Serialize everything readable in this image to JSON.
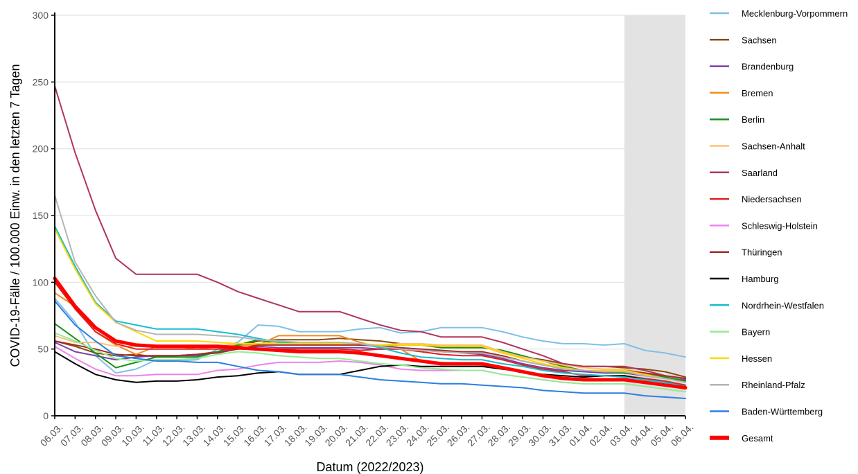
{
  "chart_data": {
    "type": "line",
    "xlabel": "Datum (2022/2023)",
    "ylabel": "COVID-19-Fälle / 100.000 Einw. in den letzten 7 Tagen",
    "ylim": [
      0,
      300
    ],
    "yticks": [
      0,
      50,
      100,
      150,
      200,
      250,
      300
    ],
    "categories": [
      "06.03.",
      "07.03.",
      "08.03.",
      "09.03.",
      "10.03.",
      "11.03.",
      "12.03.",
      "13.03.",
      "14.03.",
      "15.03.",
      "16.03.",
      "17.03.",
      "18.03.",
      "19.03.",
      "20.03.",
      "21.03.",
      "22.03.",
      "23.03.",
      "24.03.",
      "25.03.",
      "26.03.",
      "27.03.",
      "28.03.",
      "29.03.",
      "30.03.",
      "31.03.",
      "01.04.",
      "02.04.",
      "03.04.",
      "04.04.",
      "05.04.",
      "06.04."
    ],
    "shaded_region": {
      "from": "03.04.",
      "to": "06.04.",
      "color": "#e3e3e3"
    },
    "grid": "horizontal",
    "legend_position": "right",
    "series": [
      {
        "name": "Mecklenburg-Vorpommern",
        "color": "#7fbfea",
        "width": 2,
        "values": [
          88,
          70,
          45,
          32,
          35,
          42,
          41,
          42,
          50,
          55,
          68,
          67,
          63,
          63,
          63,
          65,
          66,
          62,
          63,
          66,
          66,
          66,
          63,
          59,
          56,
          54,
          54,
          53,
          54,
          49,
          47,
          44
        ]
      },
      {
        "name": "Sachsen",
        "color": "#8c4a10",
        "width": 2,
        "values": [
          56,
          52,
          47,
          45,
          46,
          44,
          45,
          46,
          48,
          52,
          56,
          57,
          57,
          57,
          58,
          57,
          56,
          54,
          54,
          52,
          52,
          52,
          47,
          44,
          42,
          39,
          37,
          37,
          36,
          35,
          33,
          29
        ]
      },
      {
        "name": "Brandenburg",
        "color": "#7b3fa8",
        "width": 2,
        "values": [
          55,
          48,
          45,
          42,
          44,
          45,
          45,
          45,
          48,
          50,
          52,
          51,
          51,
          51,
          51,
          51,
          50,
          50,
          49,
          48,
          47,
          46,
          43,
          39,
          36,
          34,
          33,
          32,
          32,
          30,
          28,
          27
        ]
      },
      {
        "name": "Bremen",
        "color": "#f28a1e",
        "width": 2,
        "values": [
          92,
          82,
          63,
          53,
          46,
          52,
          52,
          50,
          52,
          53,
          53,
          60,
          60,
          60,
          60,
          55,
          51,
          50,
          41,
          40,
          39,
          38,
          36,
          33,
          30,
          28,
          27,
          27,
          27,
          25,
          23,
          20
        ]
      },
      {
        "name": "Berlin",
        "color": "#1a8f1a",
        "width": 2,
        "values": [
          69,
          58,
          47,
          36,
          40,
          44,
          44,
          44,
          48,
          53,
          57,
          54,
          54,
          54,
          54,
          53,
          52,
          53,
          53,
          51,
          51,
          51,
          49,
          45,
          41,
          37,
          34,
          33,
          32,
          31,
          29,
          26
        ]
      },
      {
        "name": "Sachsen-Anhalt",
        "color": "#ffbf78",
        "width": 2,
        "values": [
          60,
          55,
          55,
          52,
          52,
          52,
          52,
          52,
          52,
          54,
          54,
          55,
          54,
          54,
          54,
          54,
          53,
          54,
          54,
          53,
          53,
          53,
          48,
          44,
          41,
          38,
          36,
          35,
          35,
          32,
          30,
          28
        ]
      },
      {
        "name": "Saarland",
        "color": "#b0355f",
        "width": 2,
        "values": [
          247,
          197,
          154,
          118,
          106,
          106,
          106,
          106,
          100,
          93,
          88,
          83,
          78,
          78,
          78,
          73,
          68,
          64,
          63,
          59,
          59,
          59,
          55,
          50,
          45,
          39,
          37,
          37,
          37,
          34,
          30,
          28
        ]
      },
      {
        "name": "Niedersachsen",
        "color": "#e02020",
        "width": 2,
        "values": [
          100,
          80,
          63,
          54,
          50,
          50,
          50,
          50,
          50,
          50,
          50,
          50,
          50,
          50,
          50,
          49,
          50,
          50,
          48,
          46,
          45,
          45,
          42,
          38,
          35,
          33,
          30,
          30,
          30,
          28,
          26,
          23
        ]
      },
      {
        "name": "Schleswig-Holstein",
        "color": "#ee82ee",
        "width": 2,
        "values": [
          52,
          43,
          35,
          30,
          30,
          31,
          31,
          31,
          34,
          35,
          38,
          40,
          40,
          40,
          41,
          40,
          38,
          35,
          34,
          34,
          34,
          34,
          31,
          29,
          27,
          25,
          24,
          24,
          24,
          22,
          20,
          18
        ]
      },
      {
        "name": "Thüringen",
        "color": "#a32b2b",
        "width": 2,
        "values": [
          56,
          53,
          50,
          46,
          45,
          45,
          45,
          46,
          47,
          50,
          53,
          53,
          53,
          53,
          53,
          53,
          52,
          51,
          50,
          49,
          48,
          48,
          45,
          41,
          38,
          36,
          34,
          34,
          34,
          32,
          30,
          28
        ]
      },
      {
        "name": "Hamburg",
        "color": "#000000",
        "width": 2,
        "values": [
          48,
          39,
          31,
          27,
          25,
          26,
          26,
          27,
          29,
          30,
          32,
          33,
          31,
          31,
          31,
          34,
          37,
          38,
          37,
          37,
          37,
          37,
          35,
          33,
          31,
          30,
          29,
          30,
          30,
          27,
          25,
          22
        ]
      },
      {
        "name": "Nordrhein-Westfalen",
        "color": "#17becf",
        "width": 2,
        "values": [
          142,
          112,
          85,
          71,
          68,
          65,
          65,
          65,
          63,
          61,
          58,
          55,
          55,
          55,
          54,
          54,
          51,
          47,
          44,
          43,
          42,
          42,
          39,
          37,
          34,
          32,
          31,
          30,
          29,
          27,
          25,
          22
        ]
      },
      {
        "name": "Bayern",
        "color": "#90ee90",
        "width": 2,
        "values": [
          62,
          56,
          49,
          43,
          41,
          42,
          42,
          43,
          46,
          48,
          47,
          45,
          44,
          43,
          43,
          41,
          39,
          38,
          36,
          35,
          34,
          34,
          31,
          29,
          27,
          25,
          24,
          24,
          24,
          22,
          20,
          18
        ]
      },
      {
        "name": "Hessen",
        "color": "#ffd700",
        "width": 2,
        "values": [
          140,
          110,
          84,
          70,
          63,
          56,
          56,
          56,
          55,
          54,
          54,
          54,
          54,
          54,
          54,
          54,
          53,
          53,
          53,
          52,
          52,
          52,
          47,
          43,
          39,
          36,
          34,
          34,
          34,
          31,
          28,
          25
        ]
      },
      {
        "name": "Rheinland-Pfalz",
        "color": "#b5b5b5",
        "width": 2,
        "values": [
          165,
          115,
          90,
          70,
          64,
          61,
          61,
          61,
          60,
          59,
          57,
          56,
          55,
          55,
          55,
          54,
          52,
          50,
          49,
          48,
          47,
          47,
          44,
          41,
          38,
          35,
          34,
          33,
          33,
          30,
          28,
          25
        ]
      },
      {
        "name": "Baden-Württemberg",
        "color": "#2d7fe0",
        "width": 2,
        "values": [
          86,
          68,
          56,
          45,
          43,
          41,
          41,
          40,
          40,
          37,
          34,
          33,
          31,
          31,
          31,
          29,
          27,
          26,
          25,
          24,
          24,
          23,
          22,
          21,
          19,
          18,
          17,
          17,
          17,
          15,
          14,
          13
        ]
      },
      {
        "name": "Gesamt",
        "color": "#ff0000",
        "width": 5,
        "values": [
          103,
          82,
          66,
          56,
          53,
          52,
          52,
          52,
          52,
          51,
          50,
          49,
          48,
          48,
          48,
          47,
          45,
          43,
          41,
          39,
          39,
          39,
          36,
          33,
          30,
          28,
          27,
          27,
          27,
          25,
          23,
          21
        ]
      }
    ]
  }
}
